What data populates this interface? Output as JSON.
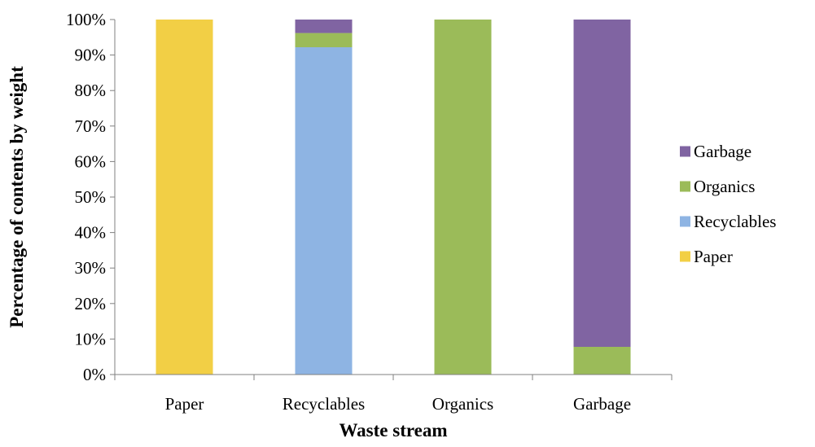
{
  "chart_data": {
    "type": "bar",
    "stacked": true,
    "title": "",
    "xlabel": "Waste stream",
    "ylabel": "Percentage of contents by weight",
    "ylim": [
      0,
      100
    ],
    "yticks": [
      0,
      10,
      20,
      30,
      40,
      50,
      60,
      70,
      80,
      90,
      100
    ],
    "ytick_suffix": "%",
    "grid": false,
    "legend_position": "right",
    "categories": [
      "Paper",
      "Recyclables",
      "Organics",
      "Garbage"
    ],
    "series": [
      {
        "name": "Paper",
        "color": "#F2CF45",
        "values": [
          100,
          0,
          0,
          0
        ]
      },
      {
        "name": "Recyclables",
        "color": "#8EB4E3",
        "values": [
          0,
          92.2,
          0,
          0
        ]
      },
      {
        "name": "Organics",
        "color": "#9BBB59",
        "values": [
          0,
          4,
          100,
          7.8
        ]
      },
      {
        "name": "Garbage",
        "color": "#8064A2",
        "values": [
          0,
          3.8,
          0,
          92.2
        ]
      }
    ]
  }
}
